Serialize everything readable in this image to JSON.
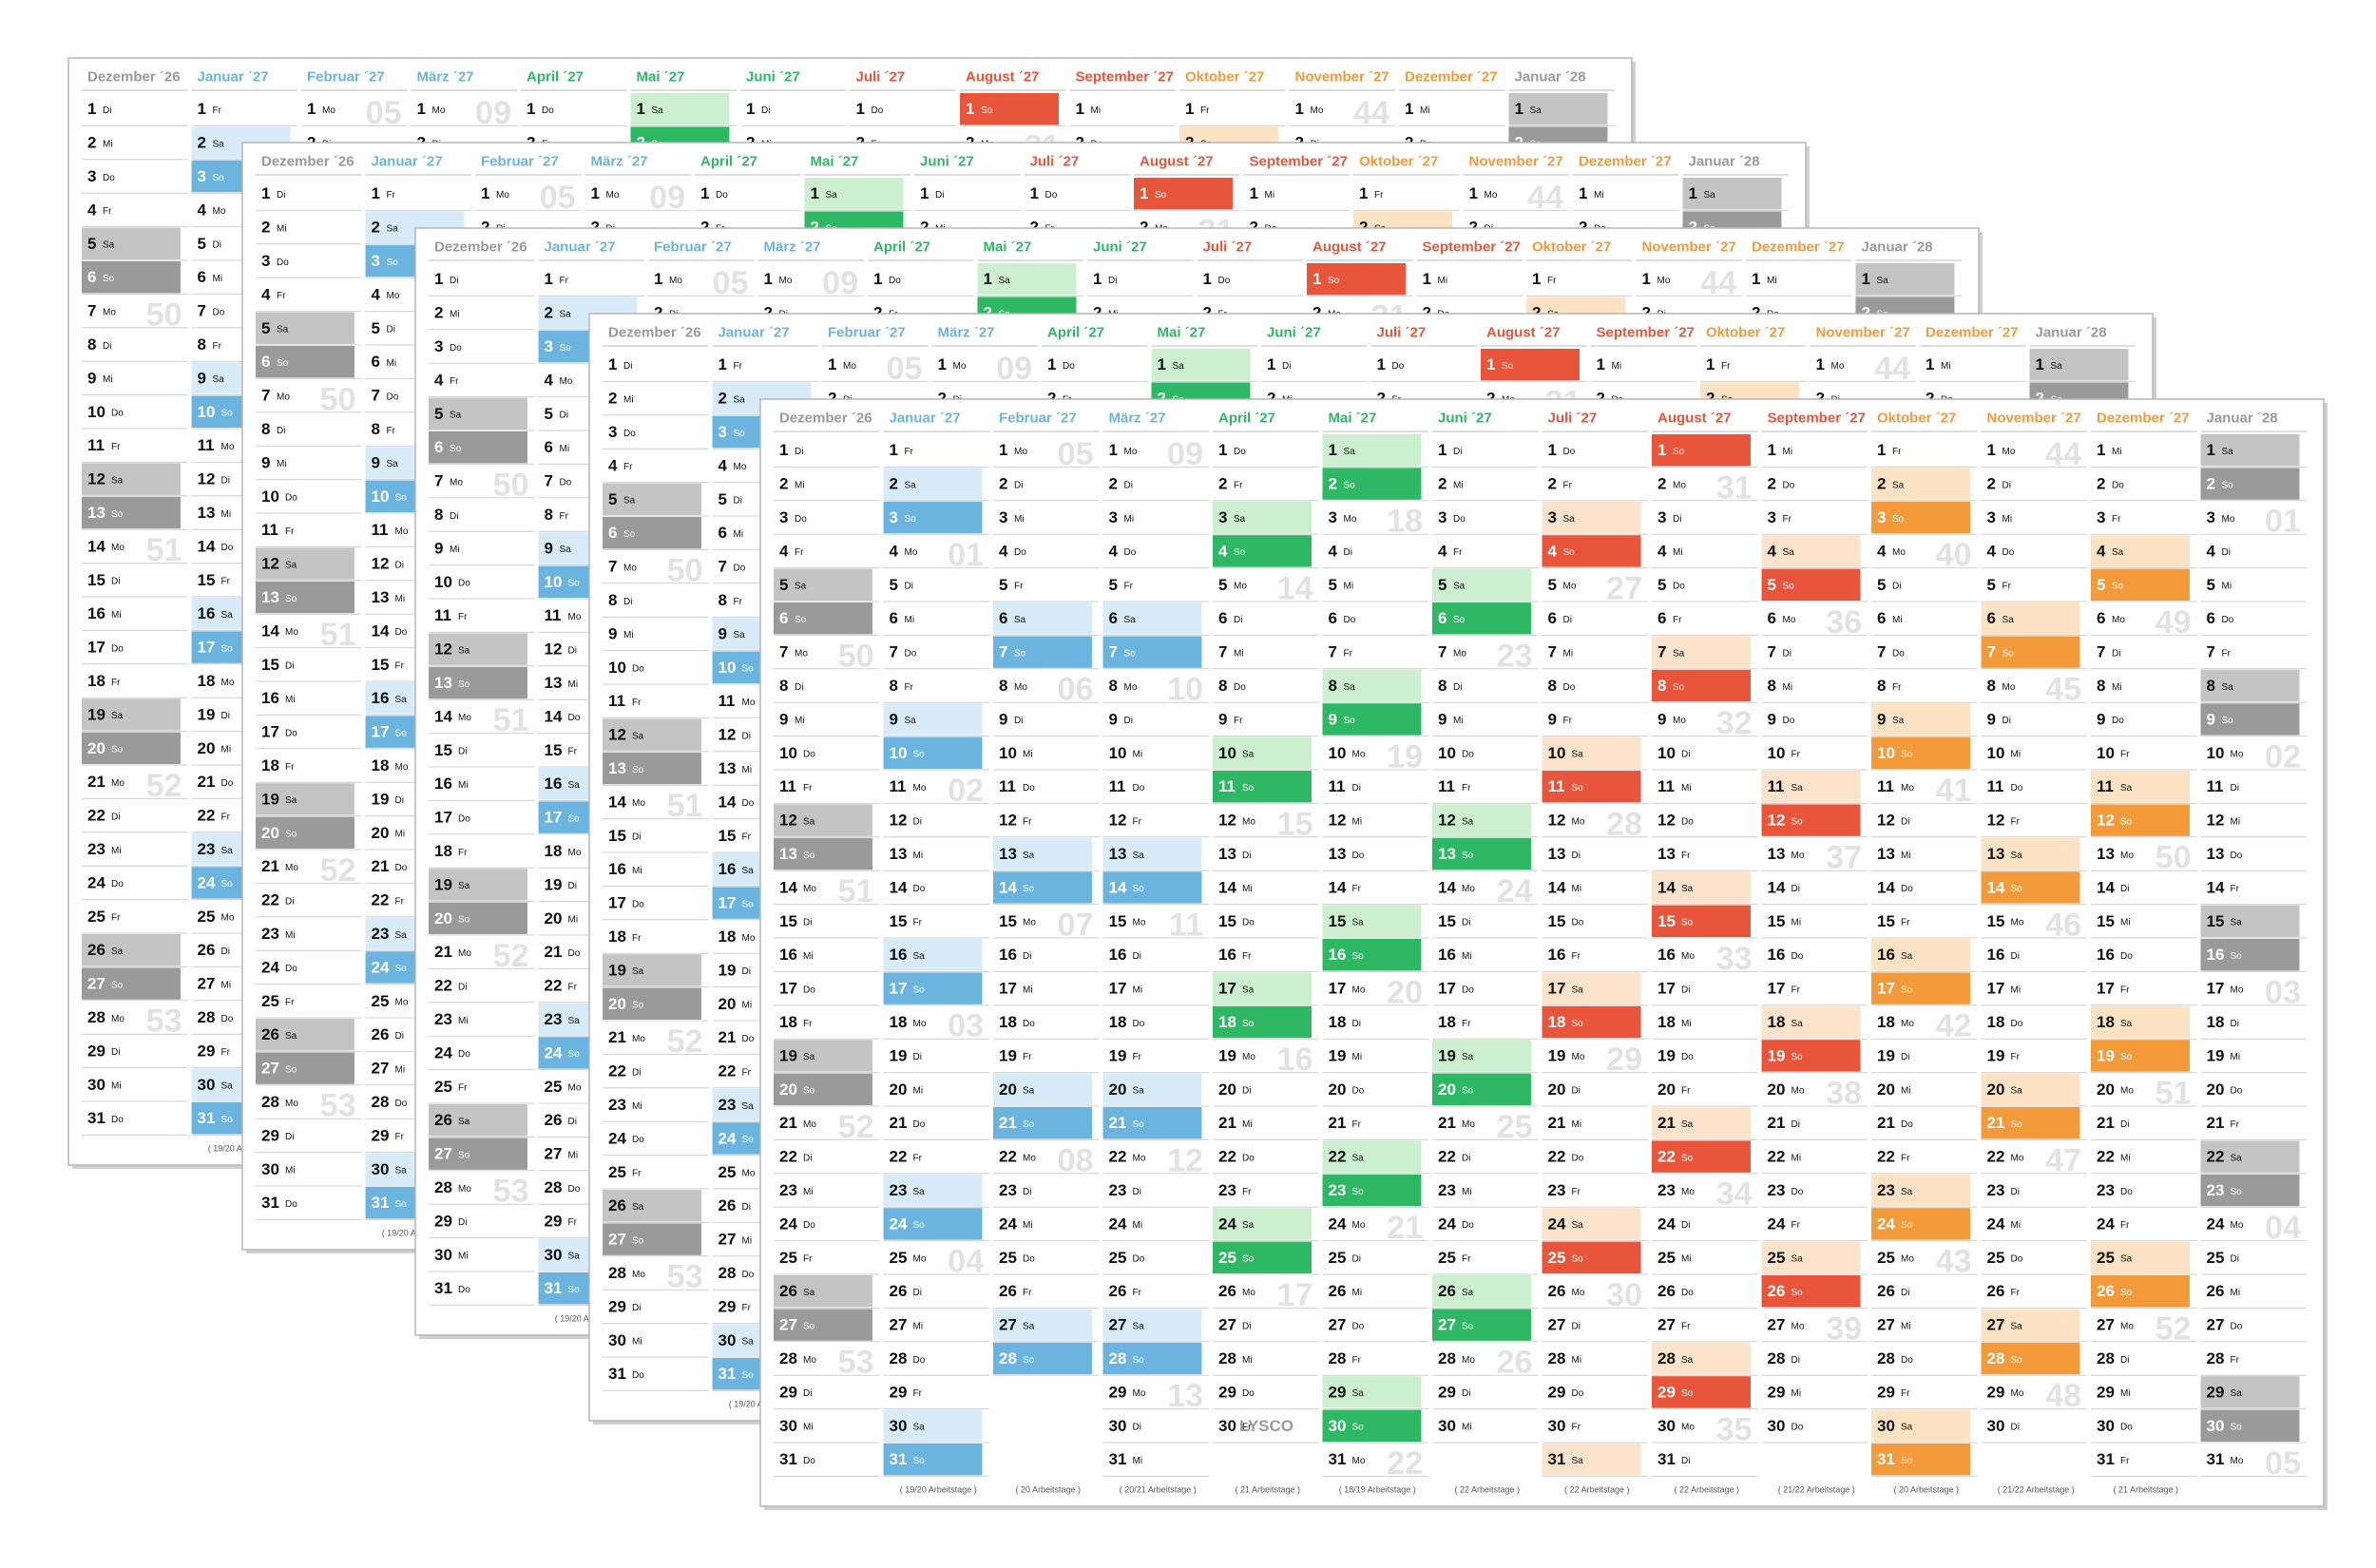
{
  "calendar": {
    "days": [
      1,
      2,
      3,
      4,
      5,
      6,
      7,
      8,
      9,
      10,
      11,
      12,
      13,
      14,
      15,
      16,
      17,
      18,
      19,
      20,
      21,
      22,
      23,
      24,
      25,
      26,
      27,
      28,
      29,
      30,
      31
    ],
    "brand": "LYSCO",
    "months": [
      {
        "name": "Dezember ´26",
        "color": "#9a9a9a",
        "light": "#c4c4c4",
        "weekdays": [
          "Di",
          "Mi",
          "Do",
          "Fr",
          "Sa",
          "So",
          "Mo",
          "Di",
          "Mi",
          "Do",
          "Fr",
          "Sa",
          "So",
          "Mo",
          "Di",
          "Mi",
          "Do",
          "Fr",
          "Sa",
          "So",
          "Mo",
          "Di",
          "Mi",
          "Do",
          "Fr",
          "Sa",
          "So",
          "Mo",
          "Di",
          "Mi",
          "Do"
        ],
        "weeks": [
          "50",
          "51",
          "52",
          "53"
        ]
      },
      {
        "name": "Januar ´27",
        "color": "#6cb4e0",
        "light": "#d8ebf8",
        "weekdays": [
          "Fr",
          "Sa",
          "So",
          "Mo",
          "Di",
          "Mi",
          "Do",
          "Fr",
          "Sa",
          "So",
          "Mo",
          "Di",
          "Mi",
          "Do",
          "Fr",
          "Sa",
          "So",
          "Mo",
          "Di",
          "Mi",
          "Do",
          "Fr",
          "Sa",
          "So",
          "Mo",
          "Di",
          "Mi",
          "Do",
          "Fr",
          "Sa",
          "So"
        ],
        "weeks": [
          "01",
          "02",
          "03",
          "04"
        ],
        "footer": "( 19/20 Arbeitstage )"
      },
      {
        "name": "Februar ´27",
        "color": "#6cb4e0",
        "light": "#d8ebf8",
        "weekdays": [
          "Mo",
          "Di",
          "Mi",
          "Do",
          "Fr",
          "Sa",
          "So",
          "Mo",
          "Di",
          "Mi",
          "Do",
          "Fr",
          "Sa",
          "So",
          "Mo",
          "Di",
          "Mi",
          "Do",
          "Fr",
          "Sa",
          "So",
          "Mo",
          "Di",
          "Mi",
          "Do",
          "Fr",
          "Sa",
          "So"
        ],
        "weeks": [
          "05",
          "06",
          "07",
          "08"
        ],
        "footer": "( 20 Arbeitstage )"
      },
      {
        "name": "März ´27",
        "color": "#6cb4e0",
        "light": "#d8ebf8",
        "weekdays": [
          "Mo",
          "Di",
          "Mi",
          "Do",
          "Fr",
          "Sa",
          "So",
          "Mo",
          "Di",
          "Mi",
          "Do",
          "Fr",
          "Sa",
          "So",
          "Mo",
          "Di",
          "Mi",
          "Do",
          "Fr",
          "Sa",
          "So",
          "Mo",
          "Di",
          "Mi",
          "Do",
          "Fr",
          "Sa",
          "So",
          "Mo",
          "Di",
          "Mi"
        ],
        "weeks": [
          "09",
          "10",
          "11",
          "12",
          "13"
        ],
        "footer": "( 20/21 Arbeitstage )"
      },
      {
        "name": "April ´27",
        "color": "#2fb863",
        "light": "#ccf0cf",
        "weekdays": [
          "Do",
          "Fr",
          "Sa",
          "So",
          "Mo",
          "Di",
          "Mi",
          "Do",
          "Fr",
          "Sa",
          "So",
          "Mo",
          "Di",
          "Mi",
          "Do",
          "Fr",
          "Sa",
          "So",
          "Mo",
          "Di",
          "Mi",
          "Do",
          "Fr",
          "Sa",
          "So",
          "Mo",
          "Di",
          "Mi",
          "Do",
          "Fr"
        ],
        "weeks": [
          "14",
          "15",
          "16",
          "17"
        ],
        "footer": "( 21 Arbeitstage )"
      },
      {
        "name": "Mai ´27",
        "color": "#2fb863",
        "light": "#ccf0cf",
        "weekdays": [
          "Sa",
          "So",
          "Mo",
          "Di",
          "Mi",
          "Do",
          "Fr",
          "Sa",
          "So",
          "Mo",
          "Di",
          "Mi",
          "Do",
          "Fr",
          "Sa",
          "So",
          "Mo",
          "Di",
          "Mi",
          "Do",
          "Fr",
          "Sa",
          "So",
          "Mo",
          "Di",
          "Mi",
          "Do",
          "Fr",
          "Sa",
          "So",
          "Mo"
        ],
        "weeks": [
          "18",
          "19",
          "20",
          "21",
          "22"
        ],
        "footer": "( 18/19 Arbeitstage )"
      },
      {
        "name": "Juni ´27",
        "color": "#2fb863",
        "light": "#ccf0cf",
        "weekdays": [
          "Di",
          "Mi",
          "Do",
          "Fr",
          "Sa",
          "So",
          "Mo",
          "Di",
          "Mi",
          "Do",
          "Fr",
          "Sa",
          "So",
          "Mo",
          "Di",
          "Mi",
          "Do",
          "Fr",
          "Sa",
          "So",
          "Mo",
          "Di",
          "Mi",
          "Do",
          "Fr",
          "Sa",
          "So",
          "Mo",
          "Di",
          "Mi"
        ],
        "weeks": [
          "23",
          "24",
          "25",
          "26"
        ],
        "footer": "( 22 Arbeitstage )"
      },
      {
        "name": "Juli ´27",
        "color": "#e8553a",
        "light": "#fde2cc",
        "weekdays": [
          "Do",
          "Fr",
          "Sa",
          "So",
          "Mo",
          "Di",
          "Mi",
          "Do",
          "Fr",
          "Sa",
          "So",
          "Mo",
          "Di",
          "Mi",
          "Do",
          "Fr",
          "Sa",
          "So",
          "Mo",
          "Di",
          "Mi",
          "Do",
          "Fr",
          "Sa",
          "So",
          "Mo",
          "Di",
          "Mi",
          "Do",
          "Fr",
          "Sa"
        ],
        "weeks": [
          "27",
          "28",
          "29",
          "30"
        ],
        "footer": "( 22 Arbeitstage )"
      },
      {
        "name": "August ´27",
        "color": "#e8553a",
        "light": "#fde2cc",
        "weekdays": [
          "So",
          "Mo",
          "Di",
          "Mi",
          "Do",
          "Fr",
          "Sa",
          "So",
          "Mo",
          "Di",
          "Mi",
          "Do",
          "Fr",
          "Sa",
          "So",
          "Mo",
          "Di",
          "Mi",
          "Do",
          "Fr",
          "Sa",
          "So",
          "Mo",
          "Di",
          "Mi",
          "Do",
          "Fr",
          "Sa",
          "So",
          "Mo",
          "Di"
        ],
        "weeks": [
          "31",
          "32",
          "33",
          "34",
          "35"
        ],
        "footer": "( 22 Arbeitstage )"
      },
      {
        "name": "September ´27",
        "color": "#e8553a",
        "light": "#fde2cc",
        "weekdays": [
          "Mi",
          "Do",
          "Fr",
          "Sa",
          "So",
          "Mo",
          "Di",
          "Mi",
          "Do",
          "Fr",
          "Sa",
          "So",
          "Mo",
          "Di",
          "Mi",
          "Do",
          "Fr",
          "Sa",
          "So",
          "Mo",
          "Di",
          "Mi",
          "Do",
          "Fr",
          "Sa",
          "So",
          "Mo",
          "Di",
          "Mi",
          "Do"
        ],
        "weeks": [
          "36",
          "37",
          "38",
          "39"
        ],
        "footer": "( 21/22 Arbeitstage )"
      },
      {
        "name": "Oktober ´27",
        "color": "#f39a3a",
        "light": "#fde3c4",
        "weekdays": [
          "Fr",
          "Sa",
          "So",
          "Mo",
          "Di",
          "Mi",
          "Do",
          "Fr",
          "Sa",
          "So",
          "Mo",
          "Di",
          "Mi",
          "Do",
          "Fr",
          "Sa",
          "So",
          "Mo",
          "Di",
          "Mi",
          "Do",
          "Fr",
          "Sa",
          "So",
          "Mo",
          "Di",
          "Mi",
          "Do",
          "Fr",
          "Sa",
          "So"
        ],
        "weeks": [
          "40",
          "41",
          "42",
          "43"
        ],
        "footer": "( 20 Arbeitstage )"
      },
      {
        "name": "November ´27",
        "color": "#f39a3a",
        "light": "#fde3c4",
        "weekdays": [
          "Mo",
          "Di",
          "Mi",
          "Do",
          "Fr",
          "Sa",
          "So",
          "Mo",
          "Di",
          "Mi",
          "Do",
          "Fr",
          "Sa",
          "So",
          "Mo",
          "Di",
          "Mi",
          "Do",
          "Fr",
          "Sa",
          "So",
          "Mo",
          "Di",
          "Mi",
          "Do",
          "Fr",
          "Sa",
          "So",
          "Mo",
          "Di"
        ],
        "weeks": [
          "44",
          "45",
          "46",
          "47",
          "48"
        ],
        "footer": "( 21/22 Arbeitstage )"
      },
      {
        "name": "Dezember ´27",
        "color": "#f39a3a",
        "light": "#fde3c4",
        "weekdays": [
          "Mi",
          "Do",
          "Fr",
          "Sa",
          "So",
          "Mo",
          "Di",
          "Mi",
          "Do",
          "Fr",
          "Sa",
          "So",
          "Mo",
          "Di",
          "Mi",
          "Do",
          "Fr",
          "Sa",
          "So",
          "Mo",
          "Di",
          "Mi",
          "Do",
          "Fr",
          "Sa",
          "So",
          "Mo",
          "Di",
          "Mi",
          "Do",
          "Fr"
        ],
        "weeks": [
          "49",
          "50",
          "51",
          "52"
        ],
        "footer": "( 21 Arbeitstage )"
      },
      {
        "name": "Januar ´28",
        "color": "#9a9a9a",
        "light": "#c4c4c4",
        "weekdays": [
          "Sa",
          "So",
          "Mo",
          "Di",
          "Mi",
          "Do",
          "Fr",
          "Sa",
          "So",
          "Mo",
          "Di",
          "Mi",
          "Do",
          "Fr",
          "Sa",
          "So",
          "Mo",
          "Di",
          "Mi",
          "Do",
          "Fr",
          "Sa",
          "So",
          "Mo",
          "Di",
          "Mi",
          "Do",
          "Fr",
          "Sa",
          "So",
          "Mo"
        ],
        "weeks": [
          "01",
          "02",
          "03",
          "04",
          "05"
        ]
      }
    ]
  }
}
